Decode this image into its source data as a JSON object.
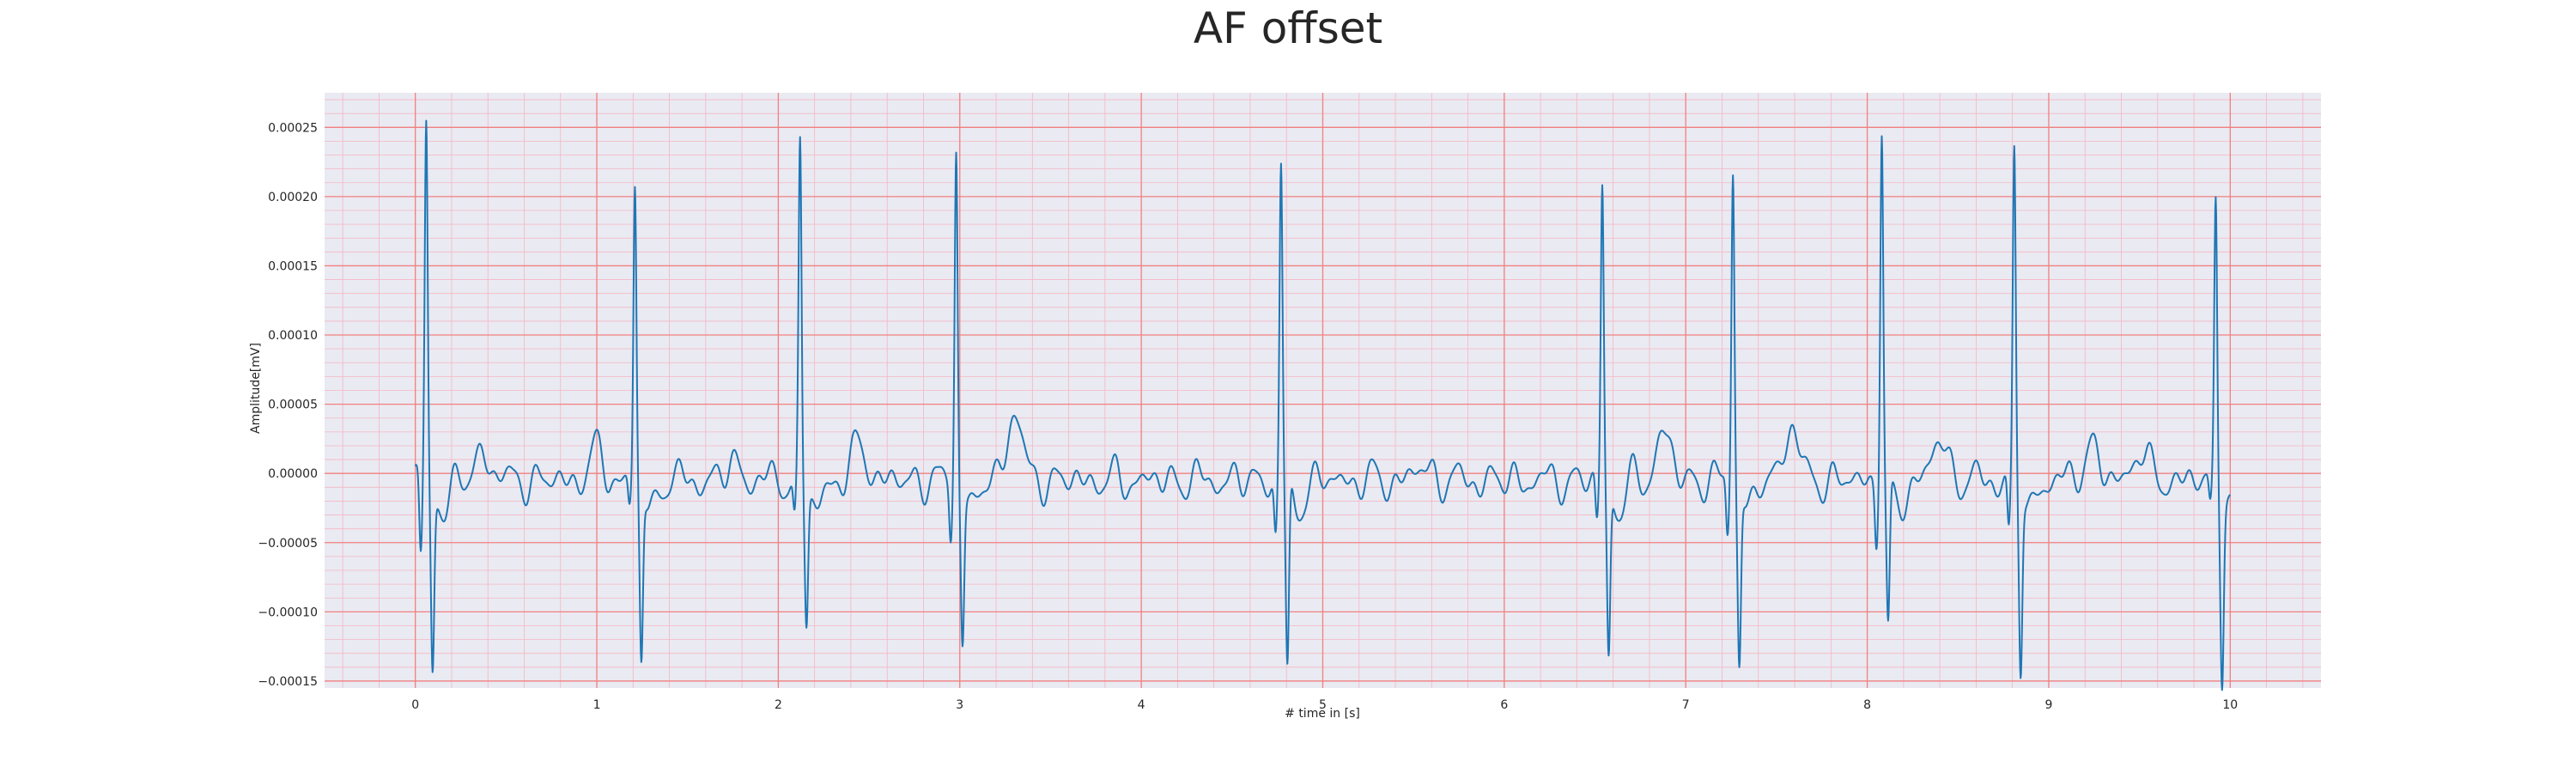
{
  "chart_data": {
    "type": "line",
    "title": "AF offset",
    "xlabel": "# time in [s]",
    "ylabel": "Amplitude[mV]",
    "xlim": [
      -0.5,
      10.5
    ],
    "ylim": [
      -0.000155,
      0.000275
    ],
    "x_ticks": [
      0,
      1,
      2,
      3,
      4,
      5,
      6,
      7,
      8,
      9,
      10
    ],
    "x_tick_labels": [
      "0",
      "1",
      "2",
      "3",
      "4",
      "5",
      "6",
      "7",
      "8",
      "9",
      "10"
    ],
    "y_ticks": [
      -0.00015,
      -0.0001,
      -5e-05,
      0,
      5e-05,
      0.0001,
      0.00015,
      0.0002,
      0.00025
    ],
    "y_tick_labels": [
      "−0.00015",
      "−0.00010",
      "−0.00005",
      "0.00000",
      "0.00005",
      "0.00010",
      "0.00015",
      "0.00020",
      "0.00025"
    ],
    "major_grid": true,
    "minor_grid": true,
    "grid_color": "#f08080",
    "minor_grid_color": "#f4b6c2",
    "background_color": "#eaeaf2",
    "line_color": "#1f77b4",
    "beats": [
      {
        "t": 0.06,
        "r": 0.000255,
        "q": -6e-05,
        "s": -0.00013
      },
      {
        "t": 1.21,
        "r": 0.00021,
        "q": -2e-05,
        "s": -0.000125
      },
      {
        "t": 2.12,
        "r": 0.00024,
        "q": -3e-05,
        "s": -9.5e-05
      },
      {
        "t": 2.98,
        "r": 0.00024,
        "q": -4e-05,
        "s": -0.000105
      },
      {
        "t": 4.77,
        "r": 0.00023,
        "q": -4e-05,
        "s": -0.00014
      },
      {
        "t": 6.54,
        "r": 0.000215,
        "q": -3e-05,
        "s": -0.000125
      },
      {
        "t": 7.26,
        "r": 0.000228,
        "q": -4e-05,
        "s": -0.000125
      },
      {
        "t": 8.08,
        "r": 0.000257,
        "q": -4e-05,
        "s": -0.000108
      },
      {
        "t": 8.81,
        "r": 0.000235,
        "q": -4e-05,
        "s": -0.00013
      },
      {
        "t": 9.92,
        "r": 0.000205,
        "q": -2e-05,
        "s": -0.00013
      }
    ],
    "waves": [
      {
        "t": 0.38,
        "a": 2e-05
      },
      {
        "t": 1.0,
        "a": 2e-05
      },
      {
        "t": 1.75,
        "a": 1.2e-05
      },
      {
        "t": 2.45,
        "a": 2.5e-05
      },
      {
        "t": 3.3,
        "a": 5e-05
      },
      {
        "t": 5.55,
        "a": 1e-05
      },
      {
        "t": 6.88,
        "a": 3.5e-05
      },
      {
        "t": 7.58,
        "a": 4e-05
      },
      {
        "t": 8.4,
        "a": 3e-05
      },
      {
        "t": 9.23,
        "a": 2.5e-05
      },
      {
        "t": 9.5,
        "a": 2.2e-05
      }
    ],
    "baseline": -5e-06,
    "duration": [
      0,
      10
    ]
  }
}
